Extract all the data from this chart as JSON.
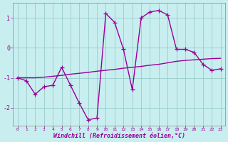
{
  "xlabel": "Windchill (Refroidissement éolien,°C)",
  "x_values": [
    0,
    1,
    2,
    3,
    4,
    5,
    6,
    7,
    8,
    9,
    10,
    11,
    12,
    13,
    14,
    15,
    16,
    17,
    18,
    19,
    20,
    21,
    22,
    23
  ],
  "y_main": [
    -1.0,
    -1.1,
    -1.55,
    -1.3,
    -1.25,
    -0.65,
    -1.25,
    -1.85,
    -2.4,
    -2.35,
    1.15,
    0.85,
    -0.05,
    -1.4,
    1.0,
    1.2,
    1.25,
    1.1,
    -0.05,
    -0.05,
    -0.15,
    -0.55,
    -0.75,
    -0.7
  ],
  "y_trend": [
    -1.0,
    -1.0,
    -1.0,
    -0.98,
    -0.95,
    -0.92,
    -0.88,
    -0.85,
    -0.82,
    -0.78,
    -0.75,
    -0.72,
    -0.68,
    -0.65,
    -0.62,
    -0.58,
    -0.55,
    -0.5,
    -0.45,
    -0.42,
    -0.4,
    -0.38,
    -0.36,
    -0.35
  ],
  "line_color": "#990099",
  "bg_color": "#c8eef0",
  "grid_color": "#99cccc",
  "ylim": [
    -2.6,
    1.5
  ],
  "yticks": [
    -2,
    -1,
    0,
    1
  ],
  "xlim": [
    -0.5,
    23.5
  ],
  "marker": "+",
  "markersize": 4,
  "linewidth": 1.0
}
